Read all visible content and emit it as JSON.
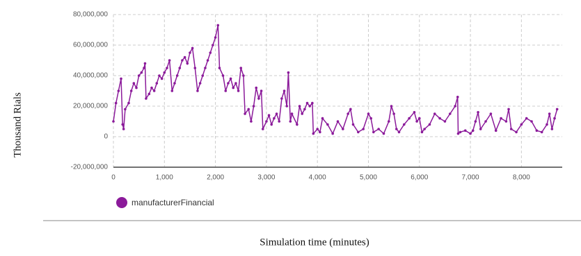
{
  "chart_data": {
    "type": "line",
    "ylabel": "Thousand Rials",
    "xlabel": "Simulation time (minutes)",
    "xlim": [
      0,
      8800
    ],
    "ylim": [
      -20000000,
      80000000
    ],
    "xticks": [
      0,
      {
        "value": 1000,
        "label": "1,000"
      },
      {
        "value": 2000,
        "label": "2,000"
      },
      {
        "value": 3000,
        "label": "3,000"
      },
      {
        "value": 4000,
        "label": "4,000"
      },
      {
        "value": 5000,
        "label": "5,000"
      },
      {
        "value": 6000,
        "label": "6,000"
      },
      {
        "value": 7000,
        "label": "7,000"
      },
      {
        "value": 8000,
        "label": "8,000"
      }
    ],
    "yticks": [
      {
        "value": -20000000,
        "label": "-20,000,000"
      },
      0,
      {
        "value": 20000000,
        "label": "20,000,000"
      },
      {
        "value": 40000000,
        "label": "40,000,000"
      },
      {
        "value": 60000000,
        "label": "60,000,000"
      },
      {
        "value": 80000000,
        "label": "80,000,000"
      }
    ],
    "grid": true,
    "legend": "bottom-left",
    "x": [
      0,
      50,
      100,
      150,
      180,
      200,
      230,
      300,
      350,
      400,
      450,
      500,
      550,
      600,
      620,
      640,
      700,
      750,
      800,
      850,
      900,
      950,
      1000,
      1050,
      1100,
      1150,
      1200,
      1250,
      1300,
      1350,
      1400,
      1450,
      1500,
      1550,
      1600,
      1650,
      1700,
      1750,
      1800,
      1850,
      1900,
      1950,
      2000,
      2050,
      2080,
      2150,
      2200,
      2250,
      2300,
      2350,
      2400,
      2450,
      2500,
      2550,
      2580,
      2650,
      2700,
      2750,
      2800,
      2850,
      2900,
      2930,
      3000,
      3050,
      3100,
      3150,
      3200,
      3250,
      3300,
      3350,
      3400,
      3430,
      3470,
      3500,
      3600,
      3650,
      3700,
      3750,
      3800,
      3850,
      3900,
      3920,
      4000,
      4050,
      4100,
      4200,
      4300,
      4400,
      4500,
      4600,
      4650,
      4700,
      4800,
      4900,
      5000,
      5050,
      5100,
      5200,
      5300,
      5400,
      5450,
      5500,
      5550,
      5600,
      5700,
      5800,
      5900,
      5950,
      6000,
      6050,
      6100,
      6200,
      6300,
      6400,
      6500,
      6600,
      6700,
      6750,
      6760,
      6800,
      6900,
      7000,
      7050,
      7100,
      7150,
      7200,
      7300,
      7400,
      7500,
      7600,
      7700,
      7750,
      7800,
      7900,
      8000,
      8100,
      8200,
      8300,
      8400,
      8500,
      8550,
      8600,
      8650,
      8700
    ],
    "series": [
      {
        "name": "manufacturerFinancial",
        "color": "#8b1a9a",
        "values": [
          10000000,
          22000000,
          30000000,
          38000000,
          8000000,
          5000000,
          18000000,
          22000000,
          30000000,
          35000000,
          32000000,
          40000000,
          42000000,
          45000000,
          48000000,
          25000000,
          28000000,
          32000000,
          30000000,
          35000000,
          40000000,
          38000000,
          42000000,
          45000000,
          50000000,
          30000000,
          35000000,
          40000000,
          45000000,
          50000000,
          52000000,
          48000000,
          55000000,
          58000000,
          45000000,
          30000000,
          35000000,
          40000000,
          45000000,
          50000000,
          55000000,
          60000000,
          65000000,
          73000000,
          45000000,
          40000000,
          30000000,
          35000000,
          38000000,
          32000000,
          35000000,
          30000000,
          45000000,
          40000000,
          15000000,
          18000000,
          10000000,
          20000000,
          32000000,
          25000000,
          30000000,
          5000000,
          10000000,
          14000000,
          8000000,
          12000000,
          15000000,
          10000000,
          25000000,
          30000000,
          20000000,
          42000000,
          10000000,
          15000000,
          8000000,
          20000000,
          15000000,
          18000000,
          22000000,
          20000000,
          22000000,
          2000000,
          5000000,
          3000000,
          12000000,
          8000000,
          2000000,
          10000000,
          5000000,
          15000000,
          18000000,
          8000000,
          3000000,
          5000000,
          15000000,
          12000000,
          3000000,
          5000000,
          2000000,
          10000000,
          20000000,
          15000000,
          5000000,
          3000000,
          8000000,
          12000000,
          16000000,
          10000000,
          12000000,
          3000000,
          5000000,
          8000000,
          15000000,
          12000000,
          10000000,
          15000000,
          20000000,
          26000000,
          2000000,
          3000000,
          4000000,
          2000000,
          4000000,
          10000000,
          16000000,
          5000000,
          10000000,
          15000000,
          4000000,
          12000000,
          10000000,
          18000000,
          5000000,
          3000000,
          8000000,
          12000000,
          10000000,
          4000000,
          3000000,
          8000000,
          15000000,
          5000000,
          12000000,
          18000000
        ]
      }
    ]
  }
}
